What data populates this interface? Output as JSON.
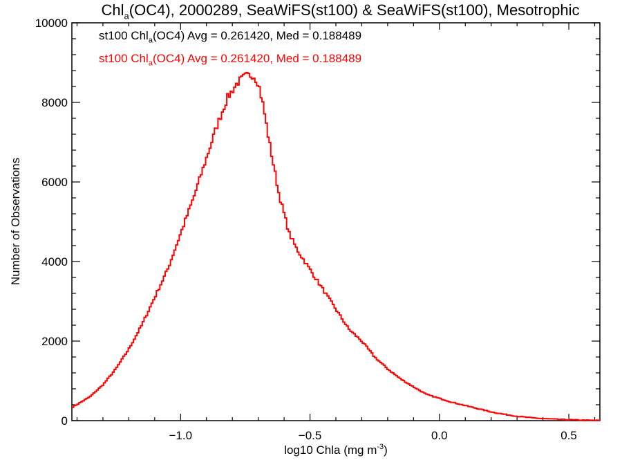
{
  "chart_data": {
    "type": "line",
    "title": {
      "before_sub": "Chl",
      "sub": "a",
      "after_sub": "(OC4), 2000289, SeaWiFS(st100) & SeaWiFS(st100), Mesotrophic"
    },
    "xlabel": {
      "before_sup": "log10 Chla (mg m",
      "sup": "-3",
      "after_sup": ")"
    },
    "ylabel": "Number of Observations",
    "xlim": [
      -1.42,
      0.62
    ],
    "ylim": [
      0,
      10000
    ],
    "xticks": [
      {
        "value": -1.0,
        "label": "−1.0"
      },
      {
        "value": -0.5,
        "label": "−0.5"
      },
      {
        "value": 0.0,
        "label": "0.0"
      },
      {
        "value": 0.5,
        "label": "0.5"
      }
    ],
    "yticks": [
      {
        "value": 0,
        "label": "0"
      },
      {
        "value": 2000,
        "label": "2000"
      },
      {
        "value": 4000,
        "label": "4000"
      },
      {
        "value": 6000,
        "label": "6000"
      },
      {
        "value": 8000,
        "label": "8000"
      },
      {
        "value": 10000,
        "label": "10000"
      }
    ],
    "legend": [
      {
        "prefix": "st100 Chl",
        "sub": "a",
        "text": "(OC4) Avg = 0.261420, Med = 0.188489",
        "color": "#000000"
      },
      {
        "prefix": "st100 Chl",
        "sub": "a",
        "text": "(OC4) Avg = 0.261420, Med = 0.188489",
        "color": "#ff0000"
      }
    ],
    "series": [
      {
        "color": "#ff0000",
        "step": true,
        "x": [
          -1.42,
          -1.35,
          -1.3,
          -1.25,
          -1.2,
          -1.15,
          -1.1,
          -1.05,
          -1.0,
          -0.95,
          -0.9,
          -0.86,
          -0.82,
          -0.78,
          -0.75,
          -0.72,
          -0.7,
          -0.68,
          -0.66,
          -0.64,
          -0.62,
          -0.6,
          -0.58,
          -0.55,
          -0.5,
          -0.45,
          -0.4,
          -0.35,
          -0.3,
          -0.25,
          -0.2,
          -0.15,
          -0.1,
          -0.05,
          0.0,
          0.05,
          0.1,
          0.15,
          0.2,
          0.25,
          0.3,
          0.35,
          0.4,
          0.45,
          0.5,
          0.55,
          0.6,
          0.62
        ],
        "y": [
          330,
          600,
          900,
          1300,
          1800,
          2400,
          3100,
          3800,
          4700,
          5600,
          6600,
          7400,
          8100,
          8500,
          8650,
          8700,
          8500,
          7900,
          7100,
          6400,
          5700,
          5200,
          4700,
          4300,
          3800,
          3300,
          2800,
          2300,
          2000,
          1600,
          1300,
          1050,
          850,
          660,
          560,
          460,
          380,
          300,
          220,
          160,
          110,
          75,
          50,
          35,
          22,
          12,
          6,
          4
        ]
      }
    ]
  }
}
